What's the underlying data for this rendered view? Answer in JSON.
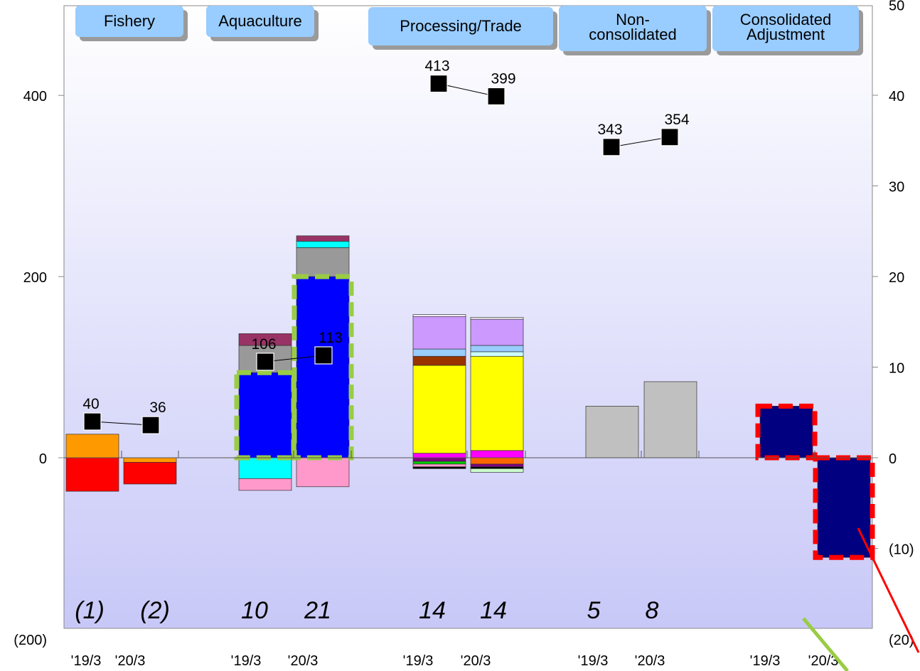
{
  "chart_data": {
    "type": "bar",
    "stacked": true,
    "segments": [
      {
        "name": "Fishery",
        "periods": [
          "'19/3",
          "'20/3"
        ],
        "operating_income_in_italics": [
          "(1)",
          "(2)"
        ],
        "sales_markers": [
          40,
          36
        ]
      },
      {
        "name": "Aquaculture",
        "periods": [
          "'19/3",
          "'20/3"
        ],
        "operating_income_in_italics": [
          "10",
          "21"
        ],
        "sales_markers": [
          106,
          113
        ]
      },
      {
        "name": "Processing/Trade",
        "periods": [
          "'19/3",
          "'20/3"
        ],
        "operating_income_in_italics": [
          "14",
          "14"
        ],
        "sales_markers": [
          413,
          399
        ]
      },
      {
        "name": "Non-consolidated",
        "periods": [
          "'19/3",
          "'20/3"
        ],
        "operating_income_in_italics": [
          "5",
          "8"
        ],
        "sales_markers": [
          343,
          354
        ]
      },
      {
        "name": "Consolidated Adjustment",
        "periods": [
          "'19/3",
          "'20/3"
        ],
        "operating_income_in_italics": [],
        "sales_markers": []
      }
    ],
    "left_axis": {
      "ticks": [
        "400",
        "200",
        "0",
        "(200)"
      ],
      "range": [
        -200,
        450
      ]
    },
    "right_axis": {
      "ticks": [
        "50",
        "40",
        "30",
        "20",
        "10",
        "0",
        "(10)",
        "(20)"
      ],
      "range": [
        -20,
        50
      ]
    },
    "bars": [
      {
        "segment": "Fishery",
        "period": "'19/3",
        "stack": [
          {
            "value": 26,
            "color": "#ff9900"
          },
          {
            "value": -37,
            "color": "#ff0000"
          }
        ]
      },
      {
        "segment": "Fishery",
        "period": "'20/3",
        "stack": [
          {
            "value": -5,
            "color": "#ff9900"
          },
          {
            "value": -24,
            "color": "#ff0000"
          }
        ]
      },
      {
        "segment": "Aquaculture",
        "period": "'19/3",
        "stack": [
          {
            "value": 94,
            "color": "#0000ff",
            "highlight": "green"
          },
          {
            "value": 30,
            "color": "#999999"
          },
          {
            "value": 13,
            "color": "#993366"
          },
          {
            "value": -23,
            "color": "#00ffff"
          },
          {
            "value": -13,
            "color": "#ff99cc"
          }
        ]
      },
      {
        "segment": "Aquaculture",
        "period": "'20/3",
        "stack": [
          {
            "value": 200,
            "color": "#0000ff",
            "highlight": "green"
          },
          {
            "value": 32,
            "color": "#999999"
          },
          {
            "value": 7,
            "color": "#00ffff"
          },
          {
            "value": 6,
            "color": "#993366"
          },
          {
            "value": -32,
            "color": "#ff99cc"
          }
        ]
      },
      {
        "segment": "Processing/Trade",
        "period": "'19/3",
        "stack": [
          {
            "value": 5,
            "color": "#ff00ff"
          },
          {
            "value": 97,
            "color": "#ffff00"
          },
          {
            "value": 10,
            "color": "#993300"
          },
          {
            "value": 8,
            "color": "#99ccff"
          },
          {
            "value": 36,
            "color": "#cc99ff"
          },
          {
            "value": 2,
            "color": "#ffffff"
          },
          {
            "value": -4,
            "color": "#800080"
          },
          {
            "value": -3,
            "color": "#00cc00"
          },
          {
            "value": -3,
            "color": "#ff99cc"
          },
          {
            "value": -2,
            "color": "#000000"
          }
        ]
      },
      {
        "segment": "Processing/Trade",
        "period": "'20/3",
        "stack": [
          {
            "value": 8,
            "color": "#ff00ff"
          },
          {
            "value": 104,
            "color": "#ffff00"
          },
          {
            "value": 5,
            "color": "#ccffff"
          },
          {
            "value": 7,
            "color": "#99ccff"
          },
          {
            "value": 29,
            "color": "#cc99ff"
          },
          {
            "value": 2,
            "color": "#ffffff"
          },
          {
            "value": -7,
            "color": "#ff6600"
          },
          {
            "value": -3,
            "color": "#800080"
          },
          {
            "value": -2,
            "color": "#000000"
          },
          {
            "value": -4,
            "color": "#ccffcc"
          }
        ]
      },
      {
        "segment": "Non-consolidated",
        "period": "'19/3",
        "stack": [
          {
            "value": 57,
            "color": "#c0c0c0"
          }
        ]
      },
      {
        "segment": "Non-consolidated",
        "period": "'20/3",
        "stack": [
          {
            "value": 84,
            "color": "#c0c0c0"
          }
        ]
      },
      {
        "segment": "Consolidated Adjustment",
        "period": "'19/3",
        "stack": [
          {
            "value": 57,
            "color": "#000080",
            "highlight": "red"
          }
        ]
      },
      {
        "segment": "Consolidated Adjustment",
        "period": "'20/3",
        "stack": [
          {
            "value": -110,
            "color": "#000080",
            "highlight": "red"
          }
        ]
      }
    ],
    "colors": {
      "plot_top": "#ffffff",
      "plot_bottom": "#c8c8f8",
      "header_box": "#99ccff",
      "marker": "#000000"
    },
    "grid": false
  }
}
